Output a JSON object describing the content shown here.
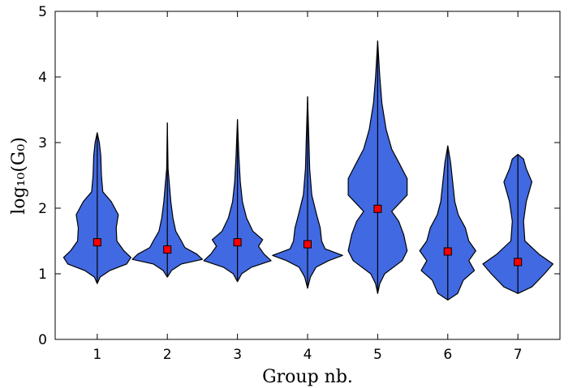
{
  "chart_data": {
    "type": "violin",
    "xlabel": "Group nb.",
    "ylabel": "log₁₀(G₀)",
    "xlim": [
      0.4,
      7.6
    ],
    "ylim": [
      0,
      5
    ],
    "xticks": [
      1,
      2,
      3,
      4,
      5,
      6,
      7
    ],
    "yticks": [
      0,
      1,
      2,
      3,
      4,
      5
    ],
    "color": "#4169e1",
    "mean_color": "#ff0000",
    "violins": [
      {
        "position": 1,
        "mean": 1.48,
        "y": [
          0.85,
          0.95,
          1.05,
          1.15,
          1.25,
          1.35,
          1.5,
          1.7,
          1.9,
          2.1,
          2.25,
          2.5,
          2.8,
          3.0,
          3.15
        ],
        "widths": [
          0,
          0.04,
          0.18,
          0.42,
          0.48,
          0.38,
          0.28,
          0.27,
          0.3,
          0.2,
          0.08,
          0.06,
          0.05,
          0.03,
          0
        ]
      },
      {
        "position": 2,
        "mean": 1.37,
        "y": [
          0.95,
          1.05,
          1.15,
          1.22,
          1.3,
          1.4,
          1.5,
          1.65,
          1.85,
          2.1,
          2.35,
          2.6,
          3.3
        ],
        "widths": [
          0,
          0.06,
          0.2,
          0.5,
          0.42,
          0.25,
          0.2,
          0.12,
          0.08,
          0.05,
          0.03,
          0.01,
          0
        ]
      },
      {
        "position": 3,
        "mean": 1.48,
        "y": [
          0.88,
          1.0,
          1.1,
          1.2,
          1.3,
          1.42,
          1.52,
          1.65,
          1.85,
          2.1,
          2.4,
          2.8,
          3.35
        ],
        "widths": [
          0,
          0.06,
          0.2,
          0.48,
          0.38,
          0.3,
          0.36,
          0.22,
          0.13,
          0.07,
          0.04,
          0.02,
          0
        ]
      },
      {
        "position": 4,
        "mean": 1.45,
        "y": [
          0.78,
          0.95,
          1.1,
          1.2,
          1.28,
          1.38,
          1.5,
          1.7,
          1.9,
          2.2,
          2.6,
          3.0,
          3.7
        ],
        "widths": [
          0,
          0.04,
          0.12,
          0.3,
          0.5,
          0.25,
          0.2,
          0.18,
          0.13,
          0.06,
          0.03,
          0.02,
          0
        ]
      },
      {
        "position": 5,
        "mean": 1.99,
        "y": [
          0.7,
          0.85,
          1.0,
          1.2,
          1.35,
          1.6,
          1.8,
          1.95,
          2.2,
          2.45,
          2.7,
          2.9,
          3.2,
          3.6,
          4.0,
          4.55
        ],
        "widths": [
          0,
          0.03,
          0.1,
          0.35,
          0.42,
          0.37,
          0.3,
          0.2,
          0.42,
          0.42,
          0.3,
          0.2,
          0.12,
          0.06,
          0.03,
          0
        ]
      },
      {
        "position": 6,
        "mean": 1.34,
        "y": [
          0.6,
          0.7,
          0.9,
          1.05,
          1.2,
          1.35,
          1.5,
          1.7,
          1.9,
          2.1,
          2.4,
          2.7,
          2.95
        ],
        "widths": [
          0,
          0.14,
          0.22,
          0.38,
          0.3,
          0.4,
          0.3,
          0.25,
          0.15,
          0.1,
          0.07,
          0.04,
          0
        ]
      },
      {
        "position": 7,
        "mean": 1.18,
        "y": [
          0.7,
          0.8,
          1.0,
          1.15,
          1.3,
          1.5,
          1.8,
          2.1,
          2.4,
          2.6,
          2.75,
          2.82
        ],
        "widths": [
          0,
          0.2,
          0.38,
          0.5,
          0.3,
          0.1,
          0.08,
          0.12,
          0.2,
          0.12,
          0.08,
          0
        ]
      }
    ]
  }
}
